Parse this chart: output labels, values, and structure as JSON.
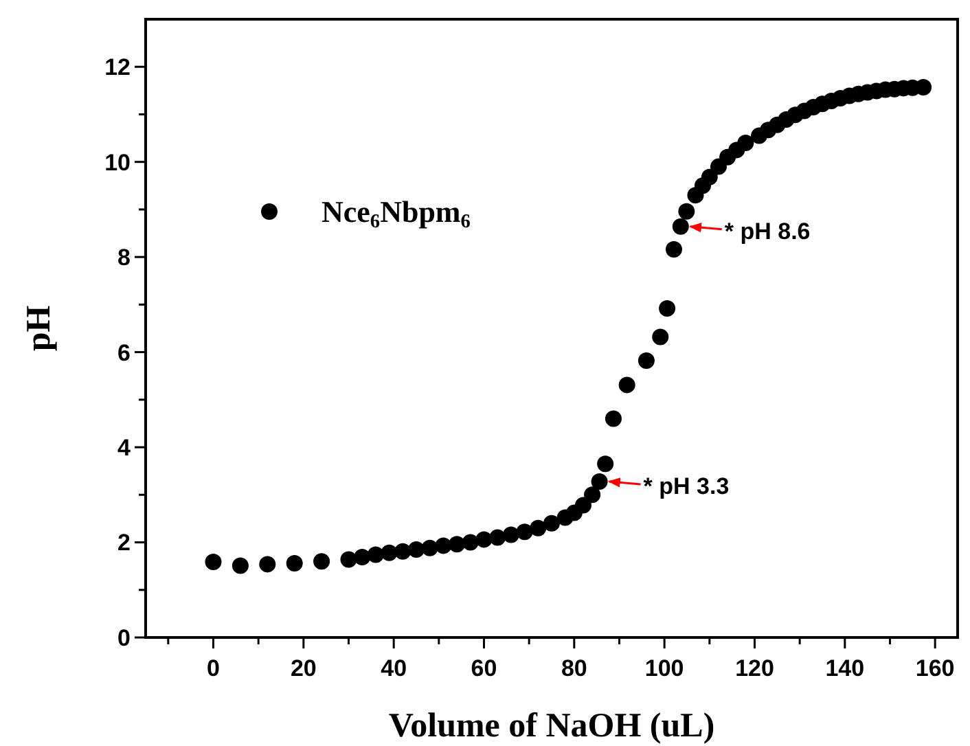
{
  "chart_data": {
    "type": "scatter",
    "xlabel": "Volume of NaOH (uL)",
    "ylabel": "pH",
    "xlim": [
      -15,
      165
    ],
    "ylim": [
      0,
      13
    ],
    "xticks": [
      {
        "value": -10,
        "label": null
      },
      0,
      {
        "value": 10,
        "label": null
      },
      20,
      {
        "value": 30,
        "label": null
      },
      40,
      {
        "value": 50,
        "label": null
      },
      60,
      {
        "value": 70,
        "label": null
      },
      80,
      {
        "value": 90,
        "label": null
      },
      100,
      {
        "value": 110,
        "label": null
      },
      120,
      {
        "value": 130,
        "label": null
      },
      140,
      {
        "value": 150,
        "label": null
      },
      160
    ],
    "yticks": [
      0,
      {
        "value": 1,
        "label": null
      },
      2,
      {
        "value": 3,
        "label": null
      },
      4,
      {
        "value": 5,
        "label": null
      },
      6,
      {
        "value": 7,
        "label": null
      },
      8,
      {
        "value": 9,
        "label": null
      },
      10,
      {
        "value": 11,
        "label": null
      },
      12
    ],
    "marker": "circle",
    "legend": "top left",
    "grid": false,
    "series": [
      {
        "name": "Nce$_{6}$Nbpm$_{6}$",
        "color": "#000000",
        "x": [
          0,
          6,
          12,
          18,
          24,
          30,
          33,
          36,
          39,
          42,
          45,
          48,
          51,
          54,
          57,
          60,
          63,
          66,
          69,
          72,
          75,
          78,
          80,
          82,
          84,
          85.6,
          86.9,
          88.7,
          91.7,
          96,
          99.1,
          100.6,
          102.1,
          103.6,
          104.9,
          106.9,
          108.5,
          110,
          112,
          114,
          116,
          118,
          121,
          123,
          125,
          127,
          129,
          131,
          133,
          135,
          137,
          139,
          141,
          143,
          145,
          147,
          149,
          151,
          153,
          155,
          157.4
        ],
        "values": [
          1.59,
          1.51,
          1.54,
          1.56,
          1.6,
          1.64,
          1.69,
          1.74,
          1.78,
          1.81,
          1.85,
          1.88,
          1.93,
          1.96,
          2.0,
          2.06,
          2.1,
          2.16,
          2.22,
          2.3,
          2.4,
          2.52,
          2.62,
          2.78,
          3.0,
          3.28,
          3.65,
          4.6,
          5.31,
          5.82,
          6.32,
          6.92,
          8.16,
          8.64,
          8.96,
          9.3,
          9.5,
          9.68,
          9.9,
          10.1,
          10.25,
          10.4,
          10.55,
          10.67,
          10.78,
          10.89,
          10.99,
          11.07,
          11.15,
          11.22,
          11.28,
          11.34,
          11.39,
          11.43,
          11.46,
          11.49,
          11.52,
          11.53,
          11.55,
          11.56,
          11.57
        ]
      }
    ],
    "annotations": [
      {
        "text": "* pH 8.6",
        "x": 103.6,
        "y": 8.64
      },
      {
        "text": "* pH 3.3",
        "x": 85.6,
        "y": 3.28
      }
    ]
  }
}
